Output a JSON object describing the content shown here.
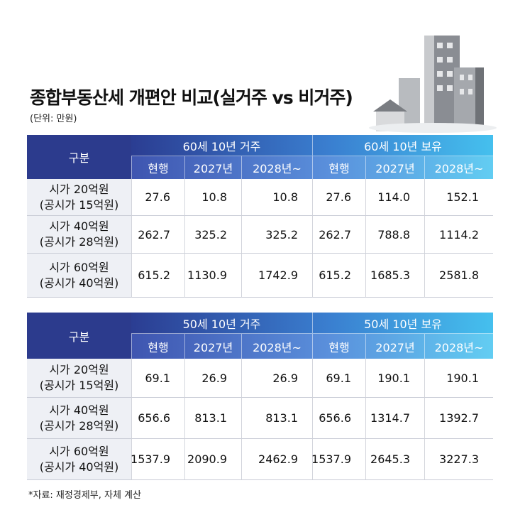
{
  "header": {
    "title": "종합부동산세 개편안 비교(실거주 vs 비거주)",
    "unit": "(단위: 만원)"
  },
  "tables": [
    {
      "corner": "구분",
      "groups": [
        "60세 10년 거주",
        "60세 10년 보유"
      ],
      "columns": [
        "현행",
        "2027년",
        "2028년~",
        "현행",
        "2027년",
        "2028년~"
      ],
      "rows": [
        {
          "label": [
            "시가 20억원",
            "(공시가 15억원)"
          ],
          "cells": [
            "27.6",
            "10.8",
            "10.8",
            "27.6",
            "114.0",
            "152.1"
          ]
        },
        {
          "label": [
            "시가 40억원",
            "(공시가 28억원)"
          ],
          "cells": [
            "262.7",
            "325.2",
            "325.2",
            "262.7",
            "788.8",
            "1114.2"
          ]
        },
        {
          "label": [
            "시가 60억원",
            "(공시가 40억원)"
          ],
          "cells": [
            "615.2",
            "1130.9",
            "1742.9",
            "615.2",
            "1685.3",
            "2581.8"
          ]
        }
      ]
    },
    {
      "corner": "구분",
      "groups": [
        "50세 10년 거주",
        "50세 10년 보유"
      ],
      "columns": [
        "현행",
        "2027년",
        "2028년~",
        "현행",
        "2027년",
        "2028년~"
      ],
      "rows": [
        {
          "label": [
            "시가 20억원",
            "(공시가 15억원)"
          ],
          "cells": [
            "69.1",
            "26.9",
            "26.9",
            "69.1",
            "190.1",
            "190.1"
          ]
        },
        {
          "label": [
            "시가 40억원",
            "(공시가 28억원)"
          ],
          "cells": [
            "656.6",
            "813.1",
            "813.1",
            "656.6",
            "1314.7",
            "1392.7"
          ]
        },
        {
          "label": [
            "시가 60억원",
            "(공시가 40억원)"
          ],
          "cells": [
            "1537.9",
            "2090.9",
            "2462.9",
            "1537.9",
            "2645.3",
            "3227.3"
          ]
        }
      ]
    }
  ],
  "source": "*자료: 재정경제부, 자체 계산"
}
